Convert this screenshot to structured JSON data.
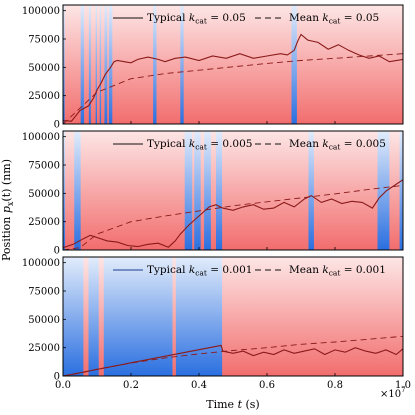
{
  "chart_data": [
    {
      "type": "line",
      "xlim": [
        0,
        10000000
      ],
      "ylim": [
        0,
        105000
      ],
      "yticks": [
        "0",
        "25000",
        "50000",
        "75000",
        "100000"
      ],
      "legend_position": "top",
      "grid": false,
      "series": [
        {
          "name": "Typical $k_\\mathrm{cat} = 0.05$",
          "label_prefix": "Typical ",
          "label_k": "k",
          "label_sub": "cat",
          "label_suffix": " = 0.05",
          "style": "solid",
          "color": "#8b1a1a",
          "x": [
            0,
            250000,
            500000,
            750000,
            900000,
            1000000,
            1100000,
            1250000,
            1400000,
            1500000,
            1600000,
            1800000,
            2000000,
            2200000,
            2500000,
            2800000,
            3000000,
            3300000,
            3600000,
            4000000,
            4400000,
            4800000,
            5200000,
            5600000,
            6000000,
            6400000,
            6600000,
            6800000,
            6900000,
            7000000,
            7200000,
            7500000,
            7800000,
            8100000,
            8400000,
            8700000,
            9000000,
            9300000,
            9600000,
            10000000
          ],
          "y": [
            3000,
            2500,
            12000,
            16000,
            23000,
            30000,
            35000,
            44000,
            50000,
            55000,
            56000,
            55000,
            54000,
            57000,
            59000,
            57000,
            55000,
            58000,
            59000,
            56000,
            60000,
            58000,
            62000,
            58000,
            60000,
            62000,
            61000,
            65000,
            73000,
            79000,
            74000,
            72000,
            66000,
            70000,
            65000,
            61000,
            58000,
            60000,
            55000,
            57000
          ]
        },
        {
          "name": "Mean $k_\\mathrm{cat} = 0.05$",
          "label_prefix": "Mean ",
          "label_k": "k",
          "label_sub": "cat",
          "label_suffix": " = 0.05",
          "style": "dashed",
          "color": "#8b1a1a",
          "x": [
            0,
            1000000,
            2000000,
            3000000,
            4000000,
            5000000,
            6000000,
            7000000,
            8000000,
            9000000,
            10000000
          ],
          "y": [
            0,
            28000,
            40000,
            44500,
            47500,
            50500,
            53500,
            56000,
            58000,
            60000,
            62000
          ]
        }
      ],
      "bands": {
        "colors": {
          "red": "#f26d6d",
          "blue": "#2a6fe0"
        },
        "blue_intervals": [
          [
            0,
            50000
          ],
          [
            520000,
            620000
          ],
          [
            760000,
            820000
          ],
          [
            960000,
            1000000
          ],
          [
            1080000,
            1120000
          ],
          [
            1220000,
            1300000
          ],
          [
            1350000,
            1450000
          ],
          [
            2650000,
            2750000
          ],
          [
            3450000,
            3550000
          ],
          [
            6720000,
            6880000
          ]
        ]
      }
    },
    {
      "type": "line",
      "xlim": [
        0,
        10000000
      ],
      "ylim": [
        0,
        105000
      ],
      "yticks": [
        "0",
        "25000",
        "50000",
        "75000",
        "100000"
      ],
      "legend_position": "top",
      "grid": false,
      "series": [
        {
          "name": "Typical $k_\\mathrm{cat} = 0.005$",
          "label_prefix": "Typical ",
          "label_k": "k",
          "label_sub": "cat",
          "label_suffix": " = 0.005",
          "style": "solid",
          "color": "#8b1a1a",
          "x": [
            0,
            300000,
            600000,
            800000,
            1000000,
            1300000,
            1600000,
            1900000,
            2200000,
            2500000,
            2800000,
            3100000,
            3300000,
            3450000,
            3700000,
            4000000,
            4300000,
            4500000,
            4700000,
            5000000,
            5300000,
            5600000,
            5900000,
            6200000,
            6500000,
            6800000,
            7100000,
            7300000,
            7600000,
            7900000,
            8200000,
            8500000,
            8800000,
            9100000,
            9300000,
            9500000,
            9700000,
            10000000
          ],
          "y": [
            2000,
            5000,
            10000,
            13000,
            11000,
            8000,
            7000,
            4000,
            3000,
            5000,
            6000,
            2500,
            8000,
            14000,
            22000,
            30000,
            38000,
            40000,
            37000,
            35000,
            38000,
            40000,
            36000,
            37000,
            42000,
            38000,
            45000,
            48000,
            42000,
            45000,
            41000,
            43000,
            42000,
            37000,
            46000,
            52000,
            56000,
            62000
          ]
        },
        {
          "name": "Mean $k_\\mathrm{cat} = 0.005$",
          "label_prefix": "Mean ",
          "label_k": "k",
          "label_sub": "cat",
          "label_suffix": " = 0.005",
          "style": "dashed",
          "color": "#8b1a1a",
          "x": [
            0,
            500000,
            1000000,
            2000000,
            3000000,
            4000000,
            5000000,
            6000000,
            7000000,
            8000000,
            9000000,
            10000000
          ],
          "y": [
            0,
            2000,
            14000,
            25000,
            30000,
            34500,
            39000,
            42500,
            46000,
            49500,
            53500,
            57000
          ]
        }
      ],
      "bands": {
        "colors": {
          "red": "#f26d6d",
          "blue": "#2a6fe0"
        },
        "blue_intervals": [
          [
            0,
            60000
          ],
          [
            330000,
            520000
          ],
          [
            3580000,
            3800000
          ],
          [
            3860000,
            4050000
          ],
          [
            4150000,
            4350000
          ],
          [
            4500000,
            4680000
          ],
          [
            7220000,
            7380000
          ],
          [
            9250000,
            9600000
          ],
          [
            9900000,
            10000000
          ]
        ]
      }
    },
    {
      "type": "line",
      "xlim": [
        0,
        10000000
      ],
      "ylim": [
        0,
        105000
      ],
      "yticks": [
        "0",
        "25000",
        "50000",
        "75000",
        "100000"
      ],
      "legend_position": "top",
      "grid": false,
      "series": [
        {
          "name": "Typical $k_\\mathrm{cat} = 0.001$",
          "label_prefix": "Typical ",
          "label_k": "k",
          "label_sub": "cat",
          "label_suffix": " = 0.001",
          "style": "solid",
          "color": "#8b1a1a",
          "x": [
            0,
            4650000,
            4700000,
            5000000,
            5300000,
            5600000,
            5900000,
            6200000,
            6500000,
            6800000,
            7100000,
            7400000,
            7700000,
            8000000,
            8300000,
            8600000,
            8900000,
            9200000,
            9500000,
            9800000,
            10000000
          ],
          "y": [
            0,
            27000,
            22000,
            20000,
            22000,
            18000,
            21000,
            19000,
            23000,
            20000,
            22000,
            24000,
            19000,
            23000,
            21000,
            25000,
            22000,
            20000,
            23000,
            19000,
            24000
          ]
        },
        {
          "name": "Mean $k_\\mathrm{cat} = 0.001$",
          "label_prefix": "Mean ",
          "label_k": "k",
          "label_sub": "cat",
          "label_suffix": " = 0.001",
          "style": "dashed",
          "color": "#8b1a1a",
          "x": [
            0,
            500000,
            1000000,
            2000000,
            3000000,
            4000000,
            5000000,
            6000000,
            7000000,
            8000000,
            9000000,
            10000000
          ],
          "y": [
            0,
            2500,
            6000,
            11500,
            16000,
            19500,
            22500,
            25000,
            28000,
            30000,
            32500,
            35000
          ]
        }
      ],
      "bands": {
        "colors": {
          "red": "#f26d6d",
          "blue": "#2a6fe0"
        },
        "red_intervals": [
          [
            600000,
            750000
          ],
          [
            1050000,
            1200000
          ],
          [
            3220000,
            3320000
          ],
          [
            4680000,
            10000000
          ]
        ]
      }
    }
  ],
  "xticks": [
    "0.0",
    "0.2",
    "0.4",
    "0.6",
    "0.8",
    "1.0"
  ],
  "x_multiplier": "×10",
  "x_multiplier_exp": "7",
  "xlabel": {
    "prefix": "Time ",
    "var": "t",
    "suffix": " (s)"
  },
  "ylabel": {
    "prefix": "Position ",
    "var": "p",
    "sub": "x",
    "suffix": "(t) (nm)"
  }
}
